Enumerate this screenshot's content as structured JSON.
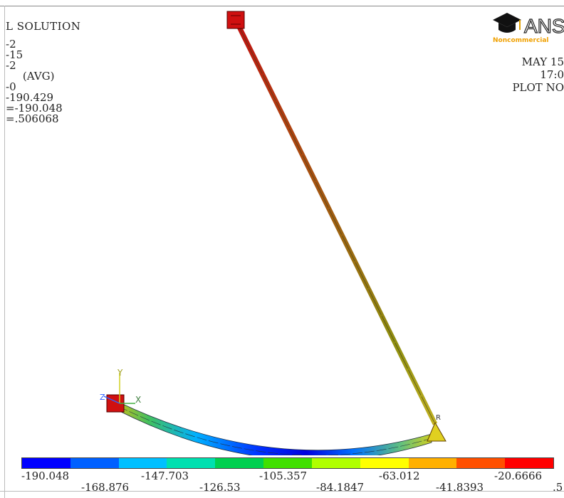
{
  "app": {
    "title_fragment": "L SOLUTION",
    "info_lines": [
      "-2",
      "-15",
      "-2",
      "     (AVG)",
      "-0",
      "-190.429",
      "=-190.048",
      "=.506068"
    ]
  },
  "header_right": {
    "logo_text_fragment": "ANS",
    "logo_subtitle": "Noncommercial",
    "date_fragment": "MAY 15",
    "time_fragment": "17:0",
    "plot_fragment": "PLOT NO"
  },
  "axes": {
    "y_label": "Y",
    "x_label": "X",
    "z_label": "Z",
    "node_label": "R"
  },
  "colorbar": {
    "colors": [
      "#0000ff",
      "#0060ff",
      "#00c0ff",
      "#00e0b0",
      "#00d050",
      "#40e000",
      "#b0ff00",
      "#ffff00",
      "#ffb000",
      "#ff5000",
      "#ff0000"
    ],
    "upper_labels": [
      "-190.048",
      "-147.703",
      "-105.357",
      "-63.012",
      "-20.6666"
    ],
    "lower_labels": [
      "-168.876",
      "-126.53",
      "-84.1847",
      "-41.8393",
      ".5"
    ]
  }
}
